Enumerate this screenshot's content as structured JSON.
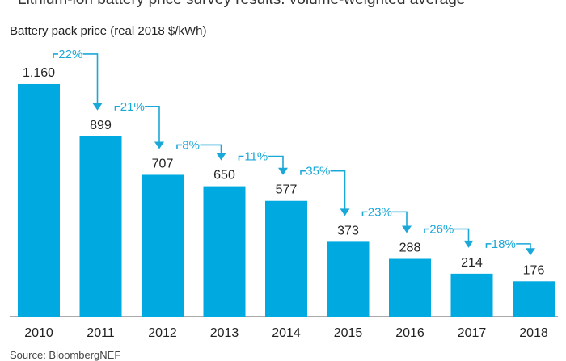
{
  "header": {
    "title": "Lithium-ion battery price survey results: volume-weighted average",
    "source": "Source: BloombergNEF"
  },
  "colors": {
    "bar": "#00a9e0",
    "annotation": "#1aa8d8",
    "axis": "#555555",
    "text": "#222222"
  },
  "chart_data": {
    "type": "bar",
    "title": "Lithium-ion battery price survey results: volume-weighted average",
    "ylabel": "Battery pack price (real 2018 $/kWh)",
    "xlabel": "",
    "categories": [
      "2010",
      "2011",
      "2012",
      "2013",
      "2014",
      "2015",
      "2016",
      "2017",
      "2018"
    ],
    "values": [
      1160,
      899,
      707,
      650,
      577,
      373,
      288,
      214,
      176
    ],
    "value_labels": [
      "1,160",
      "899",
      "707",
      "650",
      "577",
      "373",
      "288",
      "214",
      "176"
    ],
    "changes": [
      "22%",
      "21%",
      "8%",
      "11%",
      "35%",
      "23%",
      "26%",
      "18%"
    ],
    "ylim": [
      0,
      1250
    ],
    "grid": false,
    "legend": "none"
  }
}
